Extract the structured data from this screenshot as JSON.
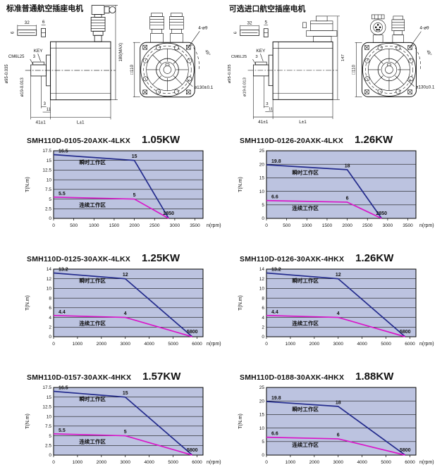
{
  "colors": {
    "instant": "#222a8c",
    "continuous": "#d916c9",
    "plot_bg": "#bcc3e0",
    "grid": "#1a1a1a",
    "axis": "#000000",
    "ink": "#111111"
  },
  "drawings": {
    "left": {
      "title": "标准普通航空插座电机",
      "dims": {
        "key_len": "32",
        "key_h": "6",
        "key_side": "6",
        "key_label": "KEY",
        "thread": "CM6L25",
        "thread_note": "3",
        "dia_pilot": "ø95-0.035",
        "dia_shaft": "ø19-0.013",
        "dim_step": "3",
        "dim_11": "11",
        "len_shaft": "41±1",
        "len_body": "L±1",
        "height": "180(MAX)",
        "flange_sq": "□110",
        "holes": "4-ø9",
        "angle": "45°",
        "bolt_circle": "ø130±0.1"
      }
    },
    "right": {
      "title": "可选进口航空插座电机",
      "dims": {
        "key_len": "32",
        "key_h": "5",
        "key_side": "6",
        "key_label": "KEY",
        "thread": "CM6L25",
        "thread_note": "3",
        "dia_pilot": "ø95-0.035",
        "dia_shaft": "ø19-0.013",
        "dim_step": "3",
        "dim_11": "11",
        "len_shaft": "41±1",
        "len_body": "L±1",
        "height": "147",
        "flange_sq": "□110",
        "holes": "4-ø9",
        "angle": "45°",
        "bolt_circle": "ø130±0.1"
      }
    }
  },
  "chart_data": [
    {
      "type": "line",
      "model": "SMH110D-0105-20AXK-4LKX",
      "power": "1.05KW",
      "xlabel": "n(rpm)",
      "ylabel": "T(N.m)",
      "xticks": [
        0,
        500,
        1000,
        1500,
        2000,
        2500,
        3000,
        3500
      ],
      "yticks": [
        0,
        2.5,
        5,
        7.5,
        10,
        12.5,
        15,
        17.5
      ],
      "xlim": [
        0,
        3700
      ],
      "ylim": [
        0,
        17.5
      ],
      "grid": "horizontal",
      "legend": "inline",
      "series": [
        {
          "name": "瞬时工作区",
          "color": "instant",
          "x": [
            0,
            2000,
            2850
          ],
          "y": [
            16.5,
            15,
            0
          ],
          "point_labels": [
            "16.5",
            "15"
          ]
        },
        {
          "name": "连续工作区",
          "color": "continuous",
          "x": [
            0,
            2000,
            2850
          ],
          "y": [
            5.5,
            5,
            0
          ],
          "point_labels": [
            "5.5",
            "5"
          ]
        }
      ],
      "end_label": "2850"
    },
    {
      "type": "line",
      "model": "SMH110D-0126-20AXK-4LKX",
      "power": "1.26KW",
      "xlabel": "n(rpm)",
      "ylabel": "T(N.m)",
      "xticks": [
        0,
        500,
        1000,
        1500,
        2000,
        2500,
        3000,
        3500
      ],
      "yticks": [
        0,
        5,
        10,
        15,
        20,
        25
      ],
      "xlim": [
        0,
        3700
      ],
      "ylim": [
        0,
        25
      ],
      "grid": "horizontal",
      "legend": "inline",
      "series": [
        {
          "name": "瞬时工作区",
          "color": "instant",
          "x": [
            0,
            2000,
            2850
          ],
          "y": [
            19.8,
            18,
            0
          ],
          "point_labels": [
            "19.8",
            "18"
          ]
        },
        {
          "name": "连续工作区",
          "color": "continuous",
          "x": [
            0,
            2000,
            2850
          ],
          "y": [
            6.6,
            6,
            0
          ],
          "point_labels": [
            "6.6",
            "6"
          ]
        }
      ],
      "end_label": "2850"
    },
    {
      "type": "line",
      "model": "SMH110D-0125-30AXK-4LKX",
      "power": "1.25KW",
      "xlabel": "n(rpm)",
      "ylabel": "T(N.m)",
      "xticks": [
        0,
        1000,
        2000,
        3000,
        4000,
        5000,
        6000
      ],
      "yticks": [
        0,
        2,
        4,
        6,
        8,
        10,
        12,
        14
      ],
      "xlim": [
        0,
        6250
      ],
      "ylim": [
        0,
        14
      ],
      "grid": "horizontal",
      "legend": "inline",
      "series": [
        {
          "name": "瞬时工作区",
          "color": "instant",
          "x": [
            0,
            3000,
            5800
          ],
          "y": [
            13.2,
            12,
            0
          ],
          "point_labels": [
            "13.2",
            "12"
          ]
        },
        {
          "name": "连续工作区",
          "color": "continuous",
          "x": [
            0,
            3000,
            5800
          ],
          "y": [
            4.4,
            4,
            0
          ],
          "point_labels": [
            "4.4",
            "4"
          ]
        }
      ],
      "end_label": "5800"
    },
    {
      "type": "line",
      "model": "SMH110D-0126-30AXK-4HKX",
      "power": "1.26KW",
      "xlabel": "n(rpm)",
      "ylabel": "T(N.m)",
      "xticks": [
        0,
        1000,
        2000,
        3000,
        4000,
        5000,
        6000
      ],
      "yticks": [
        0,
        2,
        4,
        6,
        8,
        10,
        12,
        14
      ],
      "xlim": [
        0,
        6250
      ],
      "ylim": [
        0,
        14
      ],
      "grid": "horizontal",
      "legend": "inline",
      "series": [
        {
          "name": "瞬时工作区",
          "color": "instant",
          "x": [
            0,
            3000,
            5800
          ],
          "y": [
            13.2,
            12,
            0
          ],
          "point_labels": [
            "13.2",
            "12"
          ]
        },
        {
          "name": "连续工作区",
          "color": "continuous",
          "x": [
            0,
            3000,
            5800
          ],
          "y": [
            4.4,
            4,
            0
          ],
          "point_labels": [
            "4.4",
            "4"
          ]
        }
      ],
      "end_label": "5800"
    },
    {
      "type": "line",
      "model": "SMH110D-0157-30AXK-4HKX",
      "power": "1.57KW",
      "xlabel": "n(rpm)",
      "ylabel": "T(N.m)",
      "xticks": [
        0,
        1000,
        2000,
        3000,
        4000,
        5000,
        6000
      ],
      "yticks": [
        0,
        2.5,
        5,
        7.5,
        10,
        12.5,
        15,
        17.5
      ],
      "xlim": [
        0,
        6250
      ],
      "ylim": [
        0,
        17.5
      ],
      "grid": "horizontal",
      "legend": "inline",
      "series": [
        {
          "name": "瞬时工作区",
          "color": "instant",
          "x": [
            0,
            3000,
            5800
          ],
          "y": [
            16.5,
            15,
            0
          ],
          "point_labels": [
            "16.5",
            "15"
          ]
        },
        {
          "name": "连续工作区",
          "color": "continuous",
          "x": [
            0,
            3000,
            5800
          ],
          "y": [
            5.5,
            5,
            0
          ],
          "point_labels": [
            "5.5",
            "5"
          ]
        }
      ],
      "end_label": "5800"
    },
    {
      "type": "line",
      "model": "SMH110D-0188-30AXK-4HKX",
      "power": "1.88KW",
      "xlabel": "n(rpm)",
      "ylabel": "T(N.m)",
      "xticks": [
        0,
        1000,
        2000,
        3000,
        4000,
        5000,
        6000
      ],
      "yticks": [
        0,
        5,
        10,
        15,
        20,
        25
      ],
      "xlim": [
        0,
        6250
      ],
      "ylim": [
        0,
        25
      ],
      "grid": "horizontal",
      "legend": "inline",
      "series": [
        {
          "name": "瞬时工作区",
          "color": "instant",
          "x": [
            0,
            3000,
            5800
          ],
          "y": [
            19.8,
            18,
            0
          ],
          "point_labels": [
            "19.8",
            "18"
          ]
        },
        {
          "name": "连续工作区",
          "color": "continuous",
          "x": [
            0,
            3000,
            5800
          ],
          "y": [
            6.6,
            6,
            0
          ],
          "point_labels": [
            "6.6",
            "6"
          ]
        }
      ],
      "end_label": "5800"
    }
  ]
}
